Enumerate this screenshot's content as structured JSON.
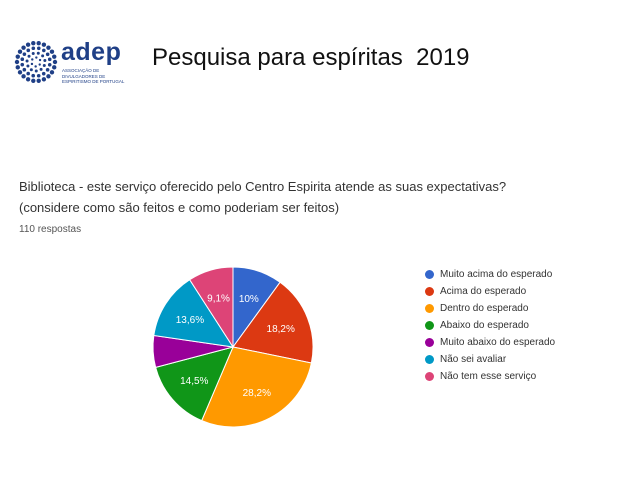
{
  "logo": {
    "word": "adep",
    "subtitle": "Associação de Divulgadores de Espiritismo de Portugal",
    "color": "#1f3f86"
  },
  "slide": {
    "title": "Pesquisa para espíritas  2019"
  },
  "survey": {
    "question_line1": "Biblioteca - este serviço oferecido pelo Centro Espirita atende as suas expectativas?",
    "question_line2": "(considere como são feitos e como poderiam ser feitos)",
    "responses": "110 respostas"
  },
  "chart_data": {
    "type": "pie",
    "title": "",
    "slices": [
      {
        "label": "Muito acima do esperado",
        "value": 10.0,
        "display": "10%",
        "color": "#3366cc"
      },
      {
        "label": "Acima do esperado",
        "value": 18.2,
        "display": "18,2%",
        "color": "#dc3912"
      },
      {
        "label": "Dentro do esperado",
        "value": 28.2,
        "display": "28,2%",
        "color": "#ff9900"
      },
      {
        "label": "Abaixo do esperado",
        "value": 14.5,
        "display": "14,5%",
        "color": "#109618"
      },
      {
        "label": "Muito abaixo do esperado",
        "value": 6.4,
        "display": "",
        "color": "#990099"
      },
      {
        "label": "Não sei avaliar",
        "value": 13.6,
        "display": "13,6%",
        "color": "#0099c6"
      },
      {
        "label": "Não tem esse serviço",
        "value": 9.1,
        "display": "9,1%",
        "color": "#dd4477"
      }
    ],
    "start_angle_deg": 90,
    "direction": "clockwise",
    "legend_position": "right"
  }
}
